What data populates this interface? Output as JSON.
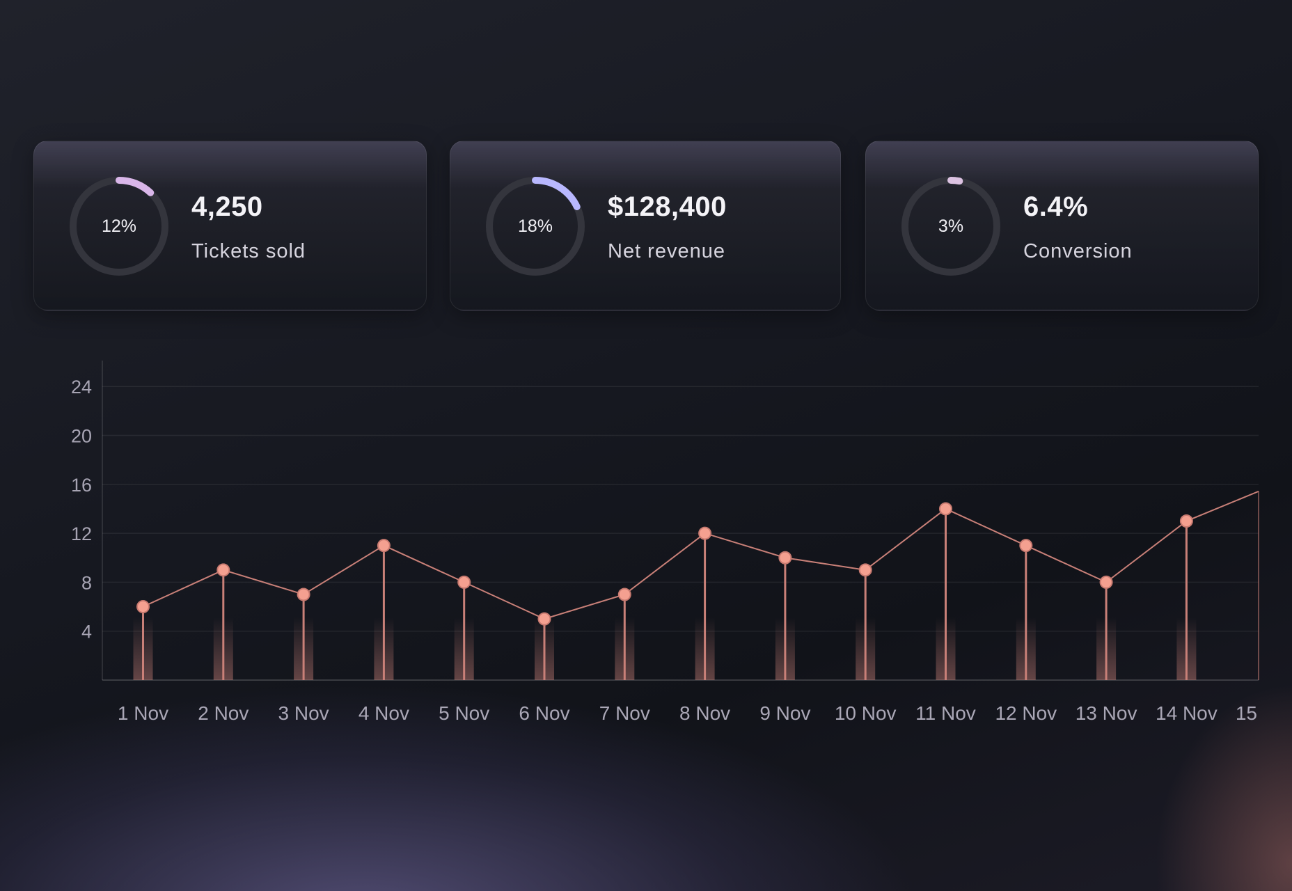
{
  "kpis": [
    {
      "value": "4,250",
      "label": "Tickets sold",
      "percent_label": "12%",
      "percent": 12,
      "ring_color": "#d9b6e9"
    },
    {
      "value": "$128,400",
      "label": "Net revenue",
      "percent_label": "18%",
      "percent": 18,
      "ring_color": "#b9b8ff"
    },
    {
      "value": "6.4%",
      "label": "Conversion",
      "percent_label": "3%",
      "percent": 3,
      "ring_color": "#dcc2e2"
    }
  ],
  "chart_data": {
    "type": "line",
    "categories": [
      "1 Nov",
      "2 Nov",
      "3 Nov",
      "4 Nov",
      "5 Nov",
      "6 Nov",
      "7 Nov",
      "8 Nov",
      "9 Nov",
      "10 Nov",
      "11 Nov",
      "12 Nov",
      "13 Nov",
      "14 Nov",
      "15"
    ],
    "series": [
      {
        "values": [
          6,
          9,
          7,
          11,
          8,
          5,
          7,
          12,
          10,
          9,
          14,
          11,
          8,
          13,
          15.7
        ]
      }
    ],
    "y_ticks": [
      4,
      8,
      12,
      16,
      20,
      24
    ],
    "ylim": [
      0,
      24
    ],
    "grid": true,
    "legend": "none",
    "line_color": "#c98078",
    "point_color": "#f4a090"
  }
}
